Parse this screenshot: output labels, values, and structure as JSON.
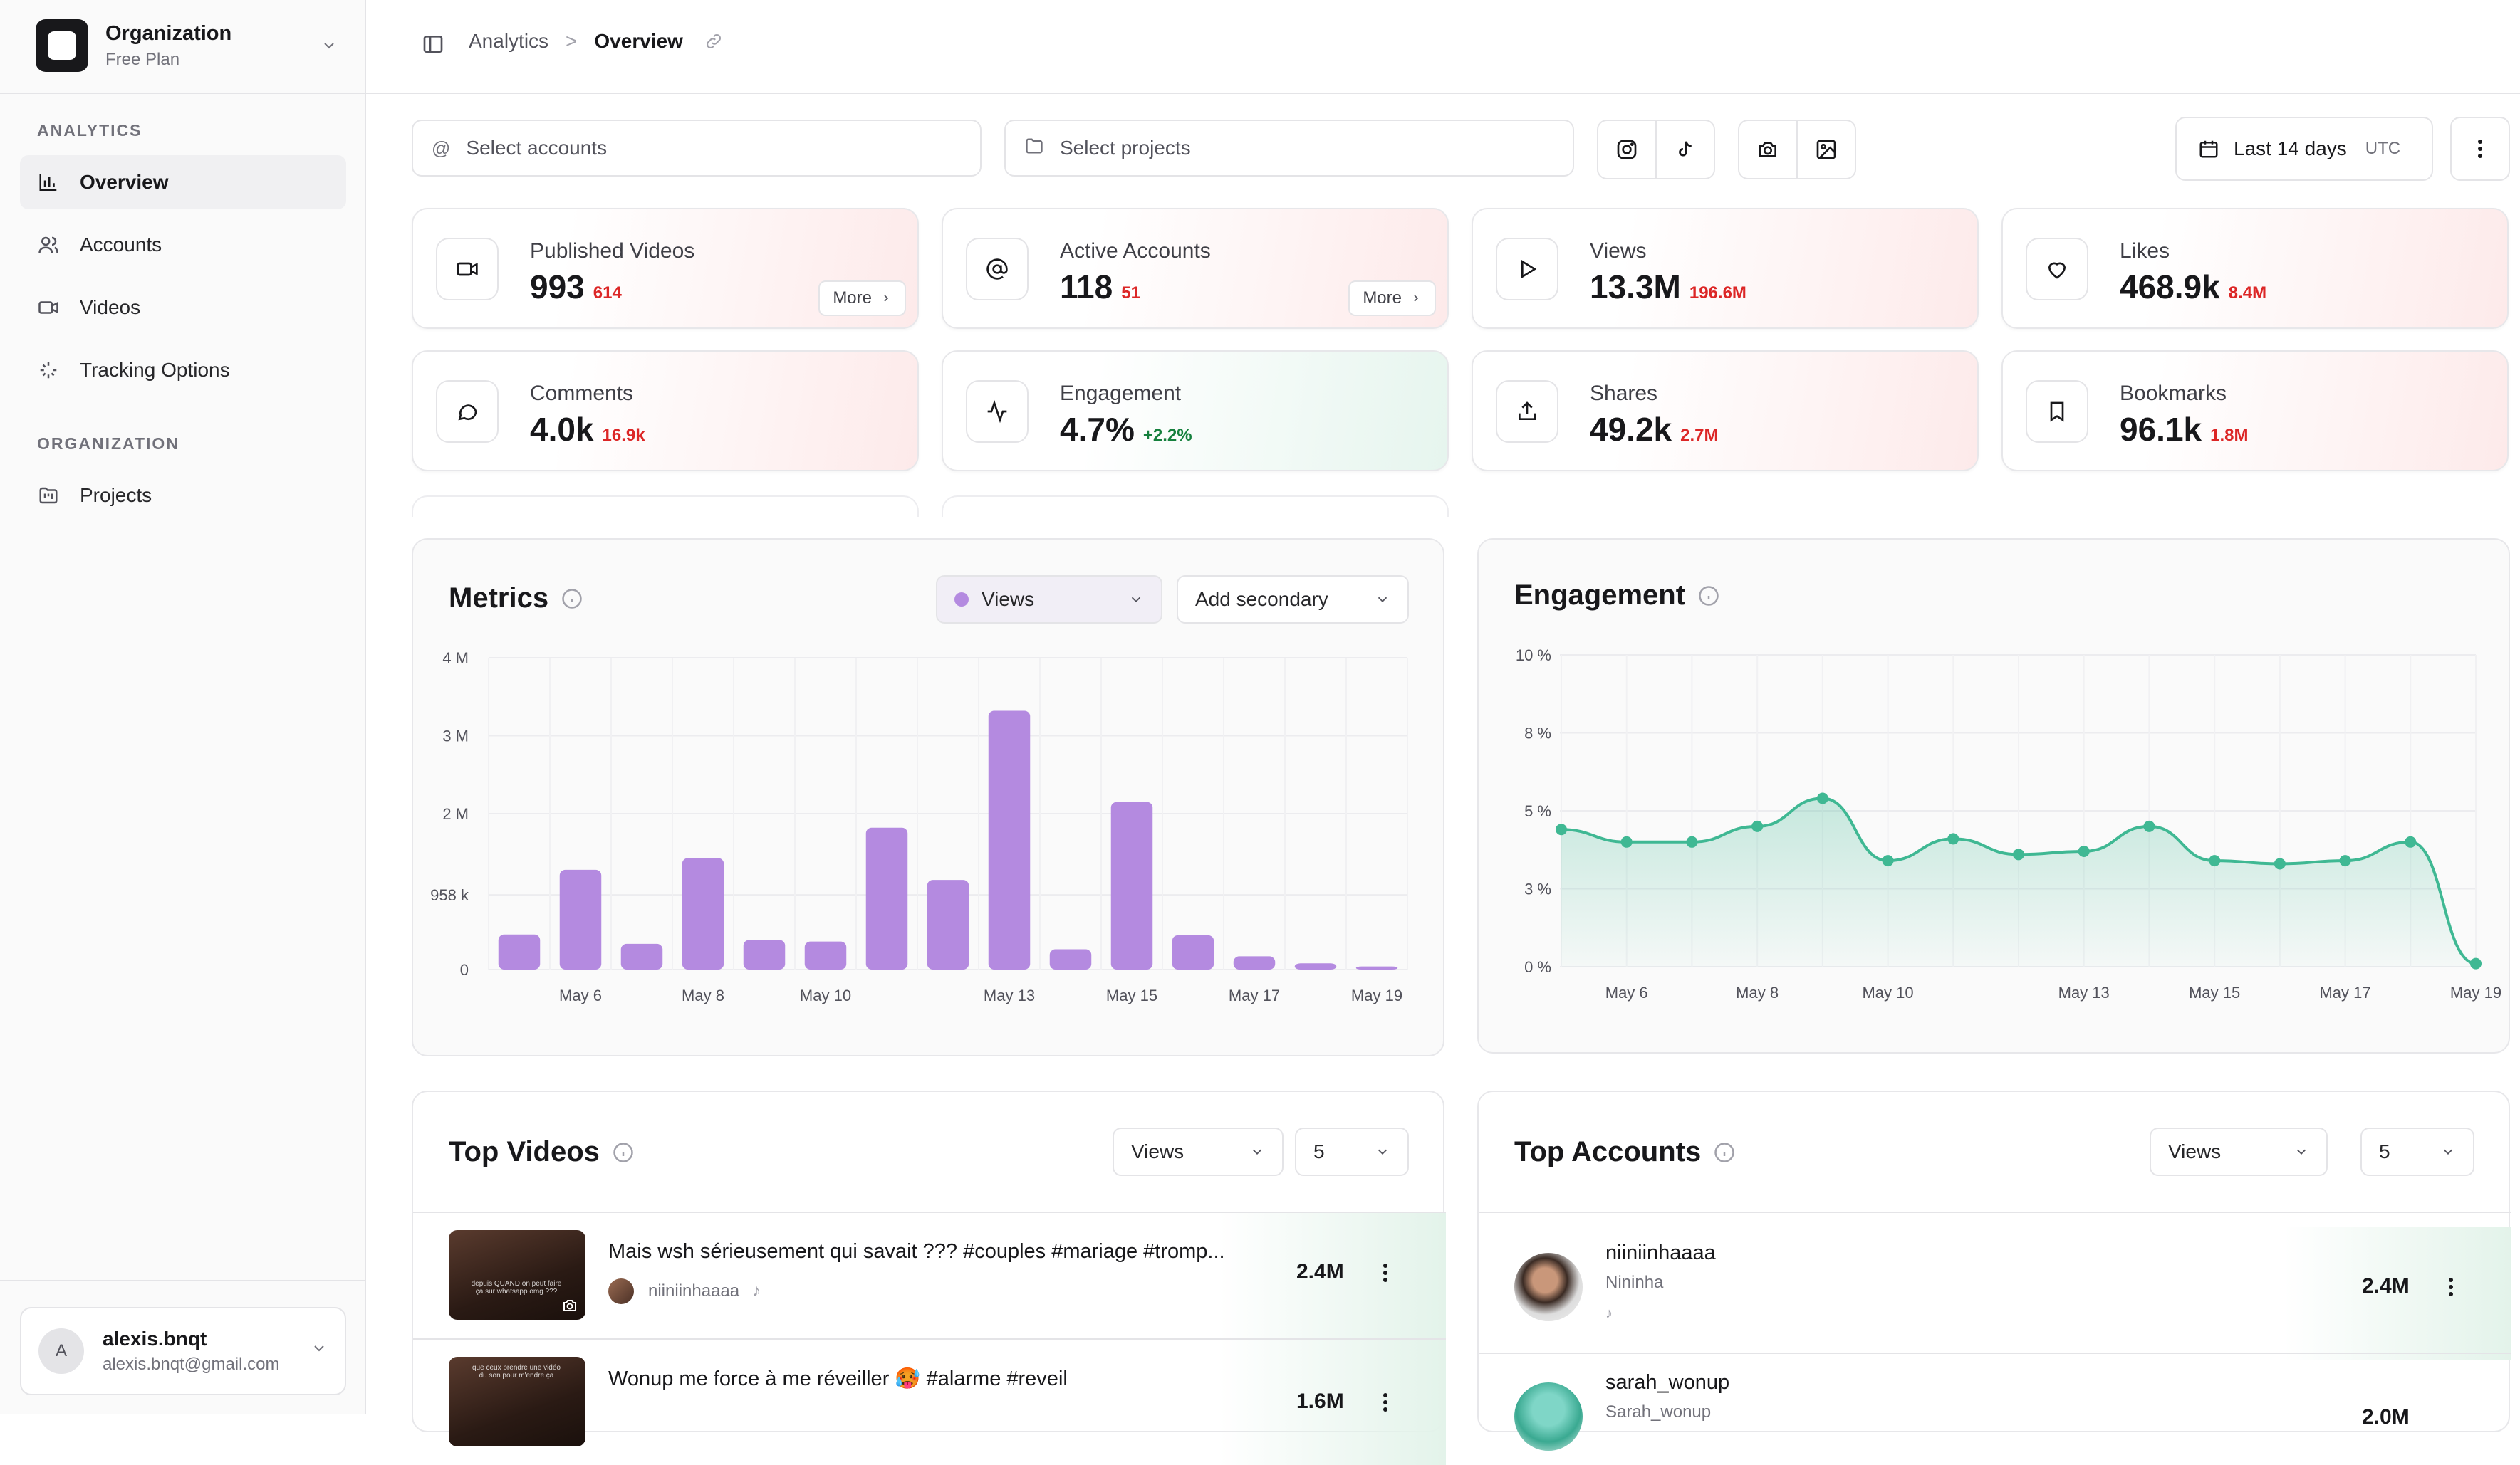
{
  "sidebar": {
    "org_name": "Organization",
    "org_plan": "Free Plan",
    "section_analytics": "ANALYTICS",
    "section_org": "ORGANIZATION",
    "items": [
      {
        "label": "Overview",
        "icon": "bar-chart-icon",
        "active": true
      },
      {
        "label": "Accounts",
        "icon": "users-icon"
      },
      {
        "label": "Videos",
        "icon": "video-icon"
      },
      {
        "label": "Tracking Options",
        "icon": "sparkle-icon"
      },
      {
        "label": "Projects",
        "icon": "folder-kanban-icon"
      }
    ],
    "user": {
      "initial": "A",
      "name": "alexis.bnqt",
      "email": "alexis.bnqt@gmail.com"
    }
  },
  "header": {
    "breadcrumb_parent": "Analytics",
    "breadcrumb_separator": ">",
    "breadcrumb_current": "Overview"
  },
  "filters": {
    "accounts_placeholder": "Select accounts",
    "projects_placeholder": "Select projects",
    "date_range": "Last 14 days",
    "timezone": "UTC"
  },
  "stats": [
    {
      "label": "Published Videos",
      "value": "993",
      "delta": "614",
      "tone": "red",
      "icon": "video-icon",
      "more": "More"
    },
    {
      "label": "Active Accounts",
      "value": "118",
      "delta": "51",
      "tone": "red",
      "icon": "at-sign-icon",
      "more": "More"
    },
    {
      "label": "Views",
      "value": "13.3M",
      "delta": "196.6M",
      "tone": "red",
      "icon": "play-icon"
    },
    {
      "label": "Likes",
      "value": "468.9k",
      "delta": "8.4M",
      "tone": "red",
      "icon": "heart-icon"
    },
    {
      "label": "Comments",
      "value": "4.0k",
      "delta": "16.9k",
      "tone": "red",
      "icon": "message-circle-icon"
    },
    {
      "label": "Engagement",
      "value": "4.7%",
      "delta": "+2.2%",
      "tone": "green",
      "icon": "activity-icon"
    },
    {
      "label": "Shares",
      "value": "49.2k",
      "delta": "2.7M",
      "tone": "red",
      "icon": "share-icon"
    },
    {
      "label": "Bookmarks",
      "value": "96.1k",
      "delta": "1.8M",
      "tone": "red",
      "icon": "bookmark-icon"
    }
  ],
  "metrics_panel": {
    "title": "Metrics",
    "primary_metric": "Views",
    "secondary_placeholder": "Add secondary"
  },
  "engagement_panel": {
    "title": "Engagement"
  },
  "chart_data": [
    {
      "type": "bar",
      "title": "Metrics",
      "series_name": "Views",
      "color": "#b48ae0",
      "y_ticks": [
        "0",
        "958 k",
        "2 M",
        "3 M",
        "4 M"
      ],
      "ylim": [
        0,
        4000000
      ],
      "x_tick_labels": [
        "May 6",
        "May 8",
        "May 10",
        "May 13",
        "May 15",
        "May 17",
        "May 19"
      ],
      "categories": [
        "May 5",
        "May 6",
        "May 7",
        "May 8",
        "May 9",
        "May 10",
        "May 11",
        "May 12",
        "May 13",
        "May 14",
        "May 15",
        "May 16",
        "May 17",
        "May 18",
        "May 19"
      ],
      "values": [
        450000,
        1280000,
        330000,
        1430000,
        380000,
        360000,
        1820000,
        1150000,
        3320000,
        260000,
        2150000,
        440000,
        170000,
        80000,
        40000
      ]
    },
    {
      "type": "area",
      "title": "Engagement",
      "color": "#3fb893",
      "y_ticks": [
        "0 %",
        "3 %",
        "5 %",
        "8 %",
        "10 %"
      ],
      "ylim": [
        0,
        10
      ],
      "x_tick_labels": [
        "May 6",
        "May 8",
        "May 10",
        "May 13",
        "May 15",
        "May 17",
        "May 19"
      ],
      "categories": [
        "May 5",
        "May 6",
        "May 7",
        "May 8",
        "May 9",
        "May 10",
        "May 11",
        "May 12",
        "May 13",
        "May 14",
        "May 15",
        "May 16",
        "May 17",
        "May 18",
        "May 19"
      ],
      "values": [
        4.4,
        4.0,
        4.0,
        4.5,
        5.4,
        3.4,
        4.1,
        3.6,
        3.7,
        4.5,
        3.4,
        3.3,
        3.4,
        4.0,
        0.1
      ]
    }
  ],
  "top_videos": {
    "title": "Top Videos",
    "sort": "Views",
    "limit": "5",
    "rows": [
      {
        "title": "Mais wsh sérieusement qui savait ??? #couples #mariage #tromp...",
        "author": "niiniinhaaaa",
        "value": "2.4M",
        "thumb_caption": "depuis QUAND on peut faire ça sur whatsapp omg ???"
      },
      {
        "title": "Wonup me force à me réveiller 🥵 #alarme #reveil",
        "author": "",
        "value": "1.6M",
        "thumb_caption": "que ceux prendre une vidéo du son pour m'endre ça"
      }
    ]
  },
  "top_accounts": {
    "title": "Top Accounts",
    "sort": "Views",
    "limit": "5",
    "rows": [
      {
        "name": "niiniinhaaaa",
        "display": "Nininha",
        "value": "2.4M"
      },
      {
        "name": "sarah_wonup",
        "display": "Sarah_wonup",
        "value": "2.0M"
      }
    ]
  }
}
